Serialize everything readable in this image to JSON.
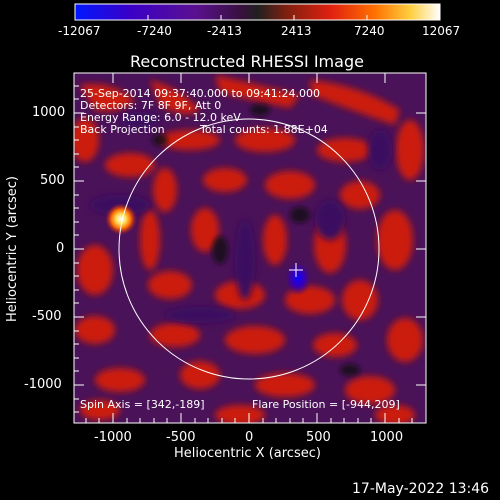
{
  "colorbar": {
    "ticks": [
      "-12067",
      "-7240",
      "-2413",
      "2413",
      "7240",
      "12067"
    ]
  },
  "title": "Reconstructed RHESSI Image",
  "info": {
    "time_range": "25-Sep-2014 09:37:40.000 to 09:41:24.000",
    "detectors": "Detectors: 7F 8F 9F, Att 0",
    "energy": "Energy Range: 6.0 - 12.0 keV",
    "method": "Back Projection",
    "counts": "Total counts: 1.88E+04"
  },
  "footer": {
    "spin_axis": "Spin Axis = [342,-189]",
    "flare_position": "Flare Position = [-944,209]"
  },
  "axes": {
    "xlabel": "Heliocentric X (arcsec)",
    "ylabel": "Heliocentric Y (arcsec)",
    "x_ticks": [
      "-1000",
      "-500",
      "0",
      "500",
      "1000"
    ],
    "y_ticks": [
      "1000",
      "500",
      "0",
      "-500",
      "-1000"
    ]
  },
  "timestamp": "17-May-2022 13:46",
  "colors": {
    "background": "#000000",
    "positive_scale": [
      "#7a1060",
      "#d02020",
      "#ff6000",
      "#ffd000",
      "#ffffff"
    ],
    "negative_scale": [
      "#4a1060",
      "#3a00a0",
      "#0000ff"
    ]
  }
}
